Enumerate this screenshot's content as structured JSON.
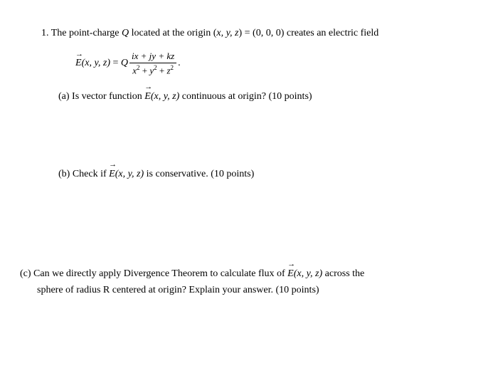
{
  "problem": {
    "number": "1.",
    "intro_pre": "The point-charge ",
    "intro_q": "Q",
    "intro_mid": " located at the origin (",
    "intro_vars": "x, y, z",
    "intro_eq": ") = (0, 0, 0) creates an electric field",
    "eq_lhs_E": "E",
    "eq_lhs_args": "(x, y, z) = Q",
    "eq_num": "ix + jy + kz",
    "eq_den_pre": "x",
    "eq_den_sup": "2",
    "eq_den_mid1": " + y",
    "eq_den_mid2": " + z",
    "eq_period": "."
  },
  "part_a": {
    "label": "(a)",
    "text_pre": "  Is vector function ",
    "vec_E": "E",
    "vec_args": "(x, y, z)",
    "text_post": " continuous at origin? (10 points)"
  },
  "part_b": {
    "label": "(b)",
    "text_pre": "  Check if ",
    "vec_E": "E",
    "vec_args": "(x, y, z)",
    "text_post": " is conservative. (10 points)"
  },
  "part_c": {
    "label": "(c)",
    "text_pre": "  Can we directly apply Divergence Theorem to calculate flux of ",
    "vec_E": "E",
    "vec_args": "(x, y, z)",
    "text_post": " across the",
    "line2": "sphere of radius R centered at origin? Explain your answer. (10 points)"
  },
  "style": {
    "font_family": "Times New Roman",
    "body_fontsize": 14,
    "text_color": "#000000",
    "bg_color": "#ffffff"
  }
}
